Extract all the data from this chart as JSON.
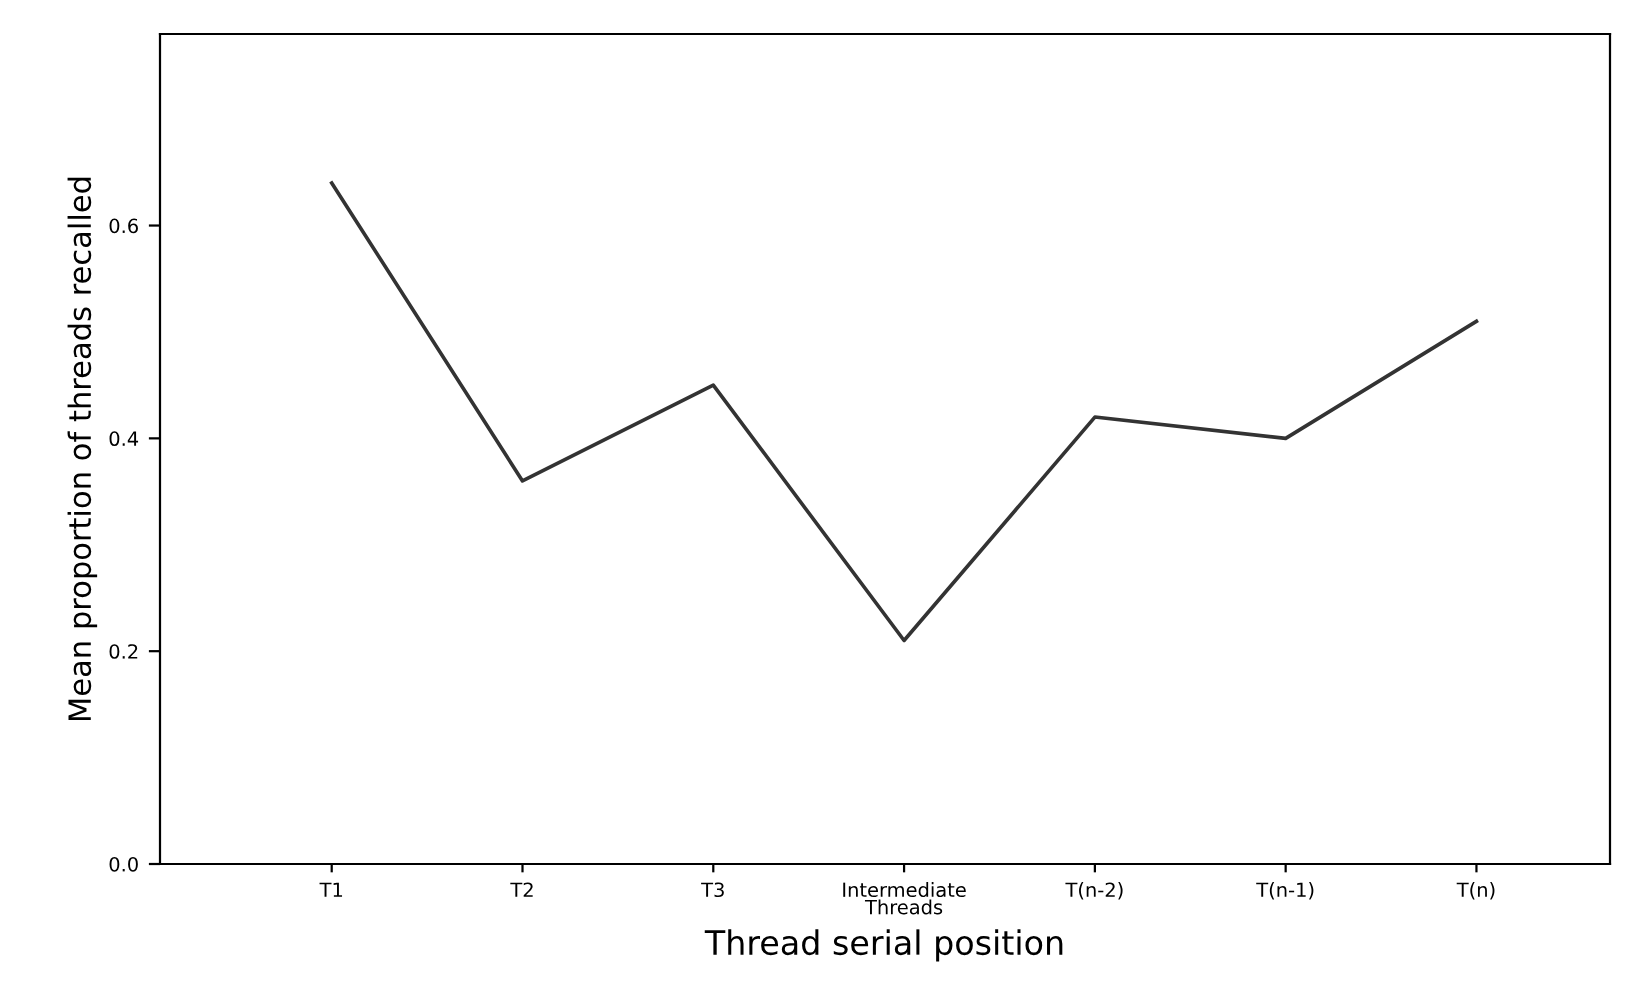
{
  "chart_data": {
    "type": "line",
    "xlabel": "Thread serial position",
    "ylabel": "Mean proportion of threads recalled",
    "categories": [
      "T1",
      "T2",
      "T3",
      "Intermediate\nThreads",
      "T(n-2)",
      "T(n-1)",
      "T(n)"
    ],
    "series": [
      {
        "color": "#333333",
        "values": [
          0.64,
          0.36,
          0.45,
          0.21,
          0.42,
          0.4,
          0.51
        ]
      }
    ],
    "ylim": [
      0,
      0.78
    ],
    "yticks": [
      {
        "value": 0,
        "label": "0.0"
      },
      {
        "value": 0.2,
        "label": "0.2"
      },
      {
        "value": 0.4,
        "label": "0.4"
      },
      {
        "value": 0.6,
        "label": "0.6"
      }
    ],
    "grid": false,
    "marker": "none",
    "line_style": "solid"
  }
}
